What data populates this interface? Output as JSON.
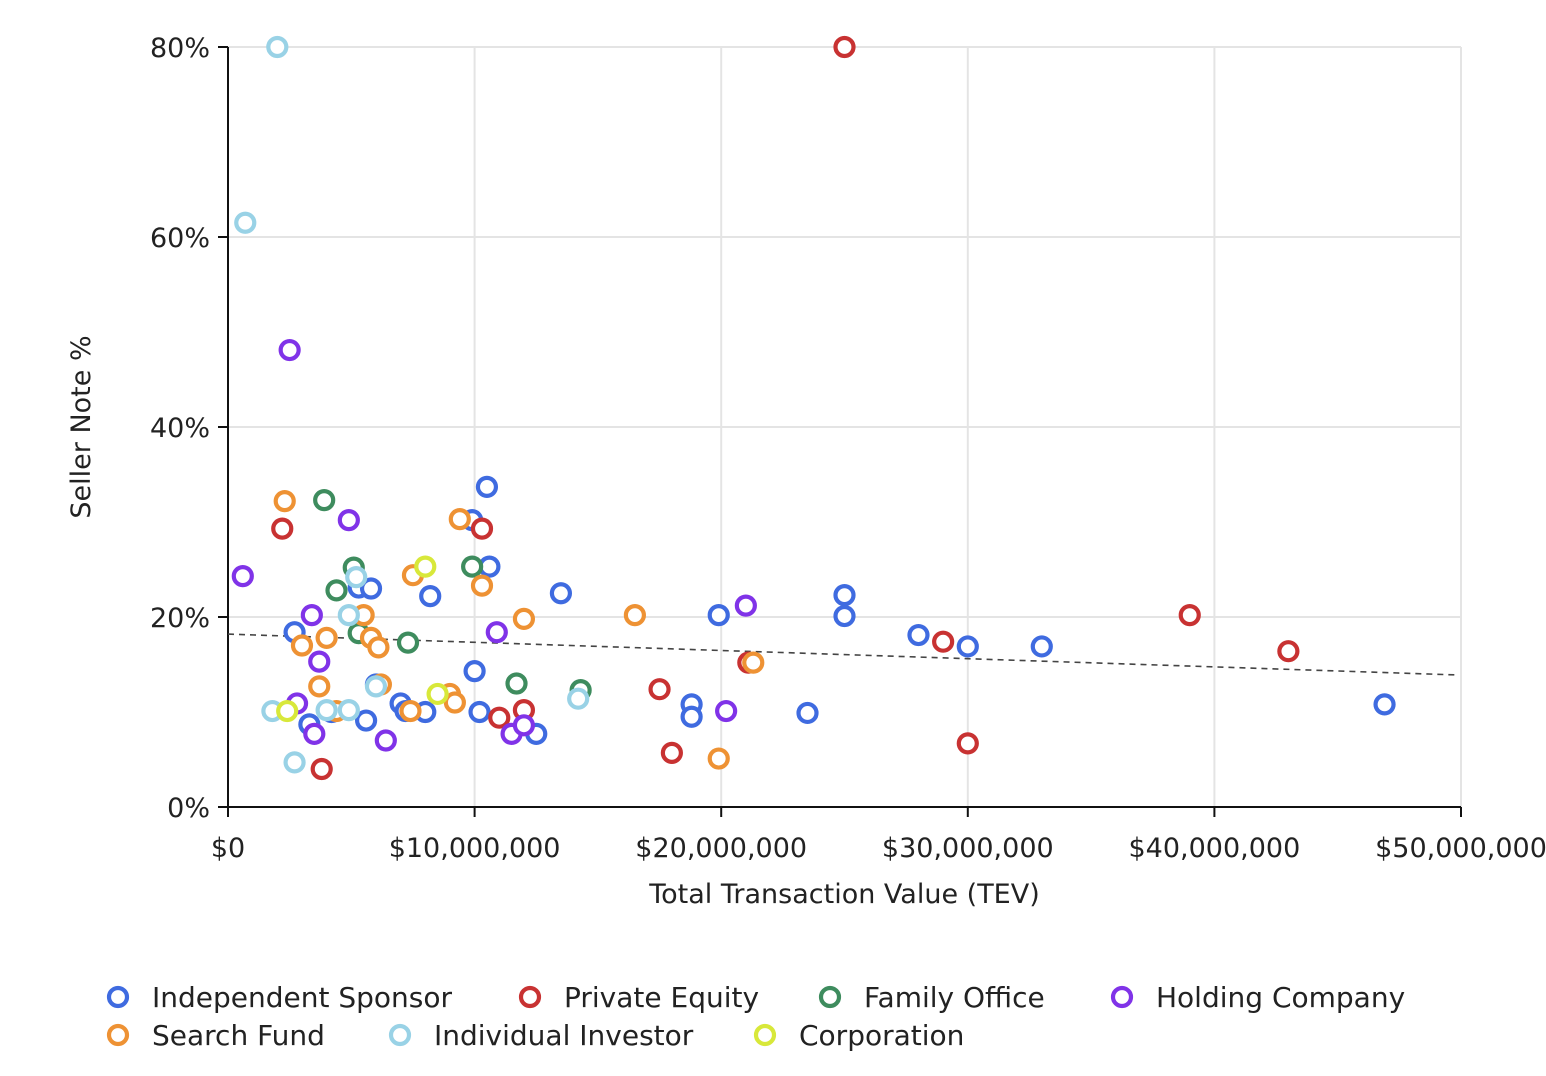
{
  "chart_data": {
    "type": "scatter",
    "xlabel": "Total Transaction Value (TEV)",
    "ylabel": "Seller Note %",
    "xlim": [
      0,
      50000000
    ],
    "ylim": [
      0,
      80
    ],
    "x_ticks": [
      0,
      10000000,
      20000000,
      30000000,
      40000000,
      50000000
    ],
    "x_tick_labels": [
      "$0",
      "$10,000,000",
      "$20,000,000",
      "$30,000,000",
      "$40,000,000",
      "$50,000,000"
    ],
    "y_ticks": [
      0,
      20,
      40,
      60,
      80
    ],
    "y_tick_labels": [
      "0%",
      "20%",
      "40%",
      "60%",
      "80%"
    ],
    "grid": true,
    "legend_position": "bottom",
    "marker": "hollow circle",
    "trendline": {
      "style": "dashed",
      "color": "#444444",
      "from": [
        0,
        18.2
      ],
      "to": [
        50000000,
        13.9
      ]
    },
    "series": [
      {
        "name": "Independent Sponsor",
        "color": "#3F6BE0",
        "points": [
          [
            2700000,
            18.4
          ],
          [
            3300000,
            8.7
          ],
          [
            4200000,
            10
          ],
          [
            5300000,
            23.1
          ],
          [
            5600000,
            9.1
          ],
          [
            5800000,
            23
          ],
          [
            6000000,
            12.9
          ],
          [
            7000000,
            10.9
          ],
          [
            7200000,
            10.1
          ],
          [
            8000000,
            10
          ],
          [
            8200000,
            22.2
          ],
          [
            9900000,
            30.2
          ],
          [
            10000000,
            14.3
          ],
          [
            10200000,
            10
          ],
          [
            10500000,
            33.7
          ],
          [
            10600000,
            25.3
          ],
          [
            12500000,
            7.7
          ],
          [
            13500000,
            22.5
          ],
          [
            18800000,
            10.8
          ],
          [
            18800000,
            9.5
          ],
          [
            19900000,
            20.2
          ],
          [
            23500000,
            9.9
          ],
          [
            25000000,
            22.3
          ],
          [
            25000000,
            20.1
          ],
          [
            28000000,
            18.1
          ],
          [
            30000000,
            16.9
          ],
          [
            33000000,
            16.9
          ],
          [
            46900000,
            10.8
          ]
        ]
      },
      {
        "name": "Private Equity",
        "color": "#C83232",
        "points": [
          [
            2200000,
            29.3
          ],
          [
            3800000,
            4
          ],
          [
            10300000,
            29.3
          ],
          [
            11000000,
            9.4
          ],
          [
            12000000,
            10.2
          ],
          [
            17500000,
            12.4
          ],
          [
            18000000,
            5.7
          ],
          [
            21100000,
            15.2
          ],
          [
            25000000,
            80
          ],
          [
            29000000,
            17.4
          ],
          [
            30000000,
            6.7
          ],
          [
            39000000,
            20.2
          ],
          [
            43000000,
            16.4
          ]
        ]
      },
      {
        "name": "Family Office",
        "color": "#3E8C5E",
        "points": [
          [
            3900000,
            32.3
          ],
          [
            4400000,
            22.8
          ],
          [
            5100000,
            25.2
          ],
          [
            5300000,
            18.3
          ],
          [
            7300000,
            17.3
          ],
          [
            9900000,
            25.3
          ],
          [
            11700000,
            13
          ],
          [
            14300000,
            12.3
          ]
        ]
      },
      {
        "name": "Holding Company",
        "color": "#8033E8",
        "points": [
          [
            600000,
            24.3
          ],
          [
            2500000,
            48.1
          ],
          [
            2800000,
            10.9
          ],
          [
            3400000,
            20.2
          ],
          [
            3500000,
            7.7
          ],
          [
            3700000,
            15.3
          ],
          [
            4900000,
            30.2
          ],
          [
            6400000,
            7
          ],
          [
            10900000,
            18.4
          ],
          [
            11500000,
            7.7
          ],
          [
            12000000,
            8.6
          ],
          [
            20200000,
            10.1
          ],
          [
            21000000,
            21.2
          ]
        ]
      },
      {
        "name": "Search Fund",
        "color": "#EE9234",
        "points": [
          [
            2300000,
            32.2
          ],
          [
            3000000,
            17
          ],
          [
            3700000,
            12.7
          ],
          [
            4000000,
            17.8
          ],
          [
            4400000,
            10.1
          ],
          [
            5500000,
            20.2
          ],
          [
            5800000,
            17.8
          ],
          [
            6100000,
            16.8
          ],
          [
            6200000,
            12.9
          ],
          [
            7400000,
            10.1
          ],
          [
            7500000,
            24.4
          ],
          [
            9000000,
            11.9
          ],
          [
            9200000,
            11
          ],
          [
            9400000,
            30.3
          ],
          [
            10300000,
            23.3
          ],
          [
            12000000,
            19.8
          ],
          [
            16500000,
            20.2
          ],
          [
            19900000,
            5.1
          ],
          [
            21300000,
            15.2
          ]
        ]
      },
      {
        "name": "Individual Investor",
        "color": "#99D2E6",
        "points": [
          [
            700000,
            61.5
          ],
          [
            1800000,
            10.1
          ],
          [
            2000000,
            80
          ],
          [
            2700000,
            4.7
          ],
          [
            4000000,
            10.2
          ],
          [
            4900000,
            20.2
          ],
          [
            4900000,
            10.2
          ],
          [
            5200000,
            24.2
          ],
          [
            6000000,
            12.7
          ],
          [
            14200000,
            11.4
          ]
        ]
      },
      {
        "name": "Corporation",
        "color": "#D8E83A",
        "points": [
          [
            2400000,
            10.1
          ],
          [
            8000000,
            25.3
          ],
          [
            8500000,
            11.9
          ]
        ]
      }
    ]
  }
}
